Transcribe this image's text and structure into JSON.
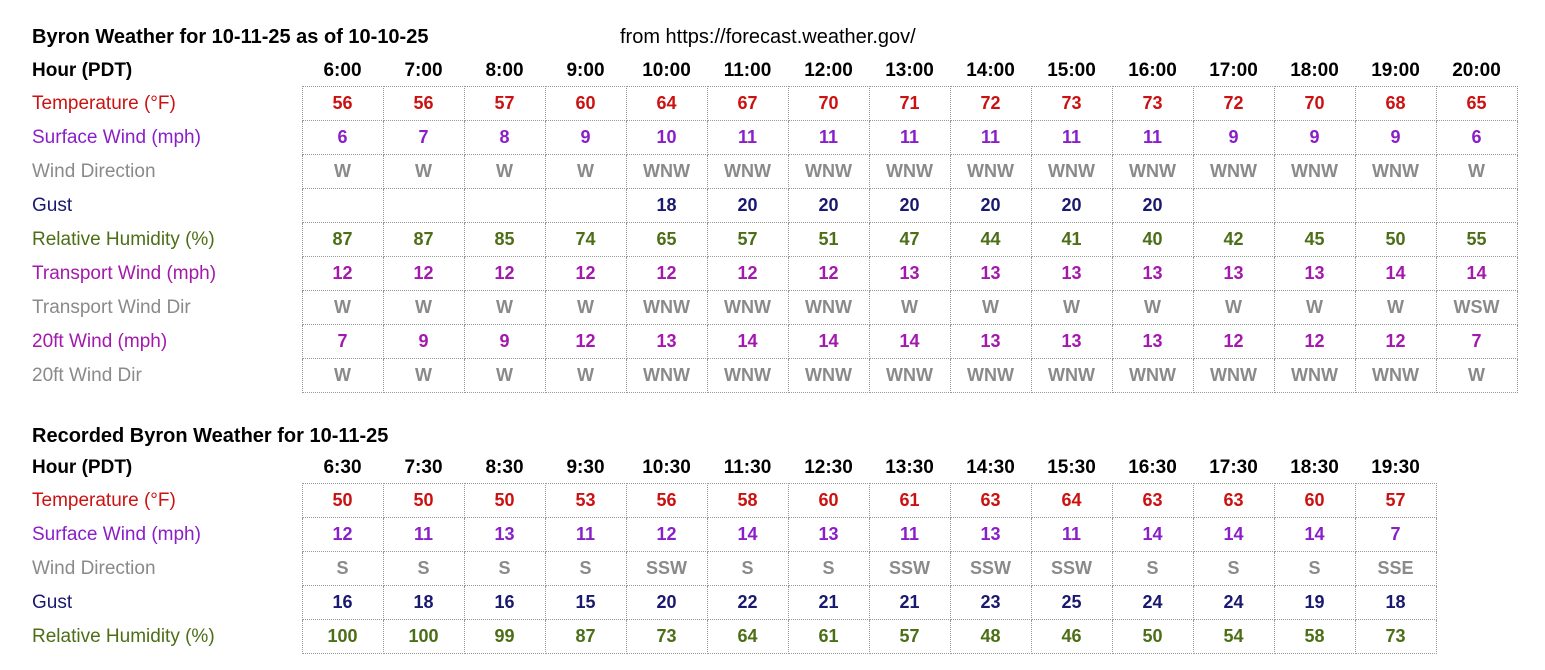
{
  "page": {
    "title1": "Byron Weather for 10-11-25 as of 10-10-25",
    "source": "from https://forecast.weather.gov/",
    "title2": "Recorded Byron Weather for 10-11-25"
  },
  "colors": {
    "hour": "#000000",
    "temperature": "#cc1111",
    "wind": "#8a1ec9",
    "direction": "#8a8a8a",
    "gust": "#191970",
    "humidity": "#4c6e16",
    "transport": "#a318ad"
  },
  "forecast_table": {
    "hour_label": "Hour (PDT)",
    "hours": [
      "6:00",
      "7:00",
      "8:00",
      "9:00",
      "10:00",
      "11:00",
      "12:00",
      "13:00",
      "14:00",
      "15:00",
      "16:00",
      "17:00",
      "18:00",
      "19:00",
      "20:00"
    ],
    "rows": [
      {
        "label": "Temperature (°F)",
        "type": "temperature",
        "values": [
          "56",
          "56",
          "57",
          "60",
          "64",
          "67",
          "70",
          "71",
          "72",
          "73",
          "73",
          "72",
          "70",
          "68",
          "65"
        ]
      },
      {
        "label": "Surface Wind (mph)",
        "type": "wind",
        "values": [
          "6",
          "7",
          "8",
          "9",
          "10",
          "11",
          "11",
          "11",
          "11",
          "11",
          "11",
          "9",
          "9",
          "9",
          "6"
        ]
      },
      {
        "label": "Wind Direction",
        "type": "direction",
        "values": [
          "W",
          "W",
          "W",
          "W",
          "WNW",
          "WNW",
          "WNW",
          "WNW",
          "WNW",
          "WNW",
          "WNW",
          "WNW",
          "WNW",
          "WNW",
          "W"
        ]
      },
      {
        "label": "Gust",
        "type": "gust",
        "values": [
          "",
          "",
          "",
          "",
          "18",
          "20",
          "20",
          "20",
          "20",
          "20",
          "20",
          "",
          "",
          "",
          ""
        ]
      },
      {
        "label": "Relative Humidity (%)",
        "type": "humidity",
        "values": [
          "87",
          "87",
          "85",
          "74",
          "65",
          "57",
          "51",
          "47",
          "44",
          "41",
          "40",
          "42",
          "45",
          "50",
          "55"
        ]
      },
      {
        "label": "Transport Wind (mph)",
        "type": "transport",
        "values": [
          "12",
          "12",
          "12",
          "12",
          "12",
          "12",
          "12",
          "13",
          "13",
          "13",
          "13",
          "13",
          "13",
          "14",
          "14"
        ]
      },
      {
        "label": "Transport Wind Dir",
        "type": "direction",
        "values": [
          "W",
          "W",
          "W",
          "W",
          "WNW",
          "WNW",
          "WNW",
          "W",
          "W",
          "W",
          "W",
          "W",
          "W",
          "W",
          "WSW"
        ]
      },
      {
        "label": "20ft Wind (mph)",
        "type": "transport",
        "values": [
          "7",
          "9",
          "9",
          "12",
          "13",
          "14",
          "14",
          "14",
          "13",
          "13",
          "13",
          "12",
          "12",
          "12",
          "7"
        ]
      },
      {
        "label": "20ft Wind Dir",
        "type": "direction",
        "values": [
          "W",
          "W",
          "W",
          "W",
          "WNW",
          "WNW",
          "WNW",
          "WNW",
          "WNW",
          "WNW",
          "WNW",
          "WNW",
          "WNW",
          "WNW",
          "W"
        ]
      }
    ]
  },
  "recorded_table": {
    "hour_label": "Hour (PDT)",
    "hours": [
      "6:30",
      "7:30",
      "8:30",
      "9:30",
      "10:30",
      "11:30",
      "12:30",
      "13:30",
      "14:30",
      "15:30",
      "16:30",
      "17:30",
      "18:30",
      "19:30"
    ],
    "rows": [
      {
        "label": "Temperature (°F)",
        "type": "temperature",
        "values": [
          "50",
          "50",
          "50",
          "53",
          "56",
          "58",
          "60",
          "61",
          "63",
          "64",
          "63",
          "63",
          "60",
          "57"
        ]
      },
      {
        "label": "Surface Wind (mph)",
        "type": "wind",
        "values": [
          "12",
          "11",
          "13",
          "11",
          "12",
          "14",
          "13",
          "11",
          "13",
          "11",
          "14",
          "14",
          "14",
          "7"
        ]
      },
      {
        "label": "Wind Direction",
        "type": "direction",
        "values": [
          "S",
          "S",
          "S",
          "S",
          "SSW",
          "S",
          "S",
          "SSW",
          "SSW",
          "SSW",
          "S",
          "S",
          "S",
          "SSE"
        ]
      },
      {
        "label": "Gust",
        "type": "gust",
        "values": [
          "16",
          "18",
          "16",
          "15",
          "20",
          "22",
          "21",
          "21",
          "23",
          "25",
          "24",
          "24",
          "19",
          "18"
        ]
      },
      {
        "label": "Relative Humidity (%)",
        "type": "humidity",
        "values": [
          "100",
          "100",
          "99",
          "87",
          "73",
          "64",
          "61",
          "57",
          "48",
          "46",
          "50",
          "54",
          "58",
          "73"
        ]
      }
    ]
  }
}
